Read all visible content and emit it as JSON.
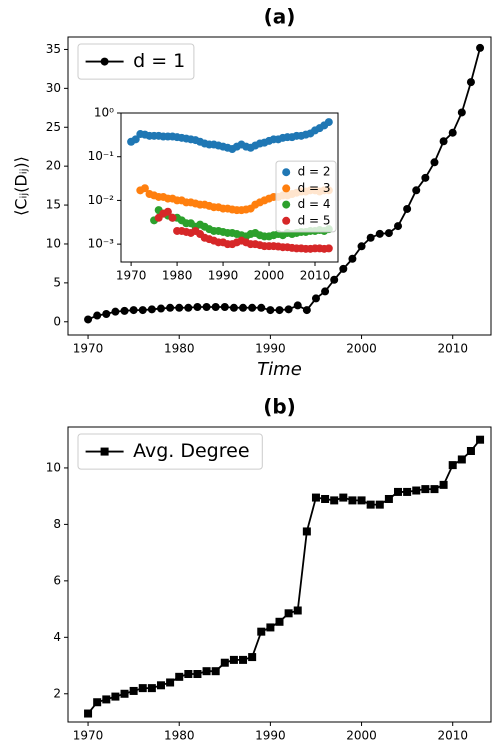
{
  "chart_data": [
    {
      "type": "line",
      "title": "(a)",
      "x_label": "Time",
      "y_label": "⟨Cᵢⱼ(Dᵢⱼ)⟩",
      "x": [
        1970,
        1971,
        1972,
        1973,
        1974,
        1975,
        1976,
        1977,
        1978,
        1979,
        1980,
        1981,
        1982,
        1983,
        1984,
        1985,
        1986,
        1987,
        1988,
        1989,
        1990,
        1991,
        1992,
        1993,
        1994,
        1995,
        1996,
        1997,
        1998,
        1999,
        2000,
        2001,
        2002,
        2003,
        2004,
        2005,
        2006,
        2007,
        2008,
        2009,
        2010,
        2011,
        2012,
        2013
      ],
      "series": [
        {
          "name": "d = 1",
          "color": "#000000",
          "marker": "circle",
          "values": [
            0.3,
            0.8,
            1.0,
            1.3,
            1.4,
            1.5,
            1.5,
            1.6,
            1.7,
            1.8,
            1.8,
            1.8,
            1.9,
            1.9,
            1.9,
            1.9,
            1.8,
            1.8,
            1.8,
            1.8,
            1.5,
            1.5,
            1.6,
            2.1,
            1.5,
            3.0,
            3.9,
            5.4,
            6.8,
            8.1,
            9.7,
            10.8,
            11.3,
            11.4,
            12.3,
            14.5,
            16.9,
            18.5,
            20.5,
            23.2,
            24.3,
            26.9,
            30.8,
            35.2
          ]
        }
      ],
      "xlim": [
        1967.8,
        2014.2
      ],
      "xticks": [
        1970,
        1980,
        1990,
        2000,
        2010
      ],
      "ylim": [
        -1.7,
        36.6
      ],
      "yticks": [
        0,
        5,
        10,
        15,
        20,
        25,
        30,
        35
      ],
      "legend": "upper left"
    },
    {
      "type": "scatter",
      "log_y": true,
      "series": [
        {
          "name": "d = 2",
          "color": "#1f77b4",
          "x": [
            1970,
            1971,
            1972,
            1973,
            1974,
            1975,
            1976,
            1977,
            1978,
            1979,
            1980,
            1981,
            1982,
            1983,
            1984,
            1985,
            1986,
            1987,
            1988,
            1989,
            1990,
            1991,
            1992,
            1993,
            1994,
            1995,
            1996,
            1997,
            1998,
            1999,
            2000,
            2001,
            2002,
            2003,
            2004,
            2005,
            2006,
            2007,
            2008,
            2009,
            2010,
            2011,
            2012,
            2013
          ],
          "values": [
            0.22,
            0.25,
            0.33,
            0.32,
            0.3,
            0.3,
            0.3,
            0.29,
            0.29,
            0.29,
            0.28,
            0.27,
            0.26,
            0.25,
            0.24,
            0.22,
            0.2,
            0.19,
            0.19,
            0.18,
            0.17,
            0.16,
            0.15,
            0.17,
            0.19,
            0.17,
            0.16,
            0.18,
            0.2,
            0.21,
            0.23,
            0.25,
            0.25,
            0.27,
            0.28,
            0.28,
            0.3,
            0.3,
            0.32,
            0.34,
            0.4,
            0.45,
            0.52,
            0.62
          ]
        },
        {
          "name": "d = 3",
          "color": "#ff7f0e",
          "x": [
            1972,
            1973,
            1974,
            1975,
            1976,
            1977,
            1978,
            1979,
            1980,
            1981,
            1982,
            1983,
            1984,
            1985,
            1986,
            1987,
            1988,
            1989,
            1990,
            1991,
            1992,
            1993,
            1994,
            1995,
            1996,
            1997,
            1998,
            1999,
            2000,
            2001,
            2002,
            2003,
            2004,
            2005,
            2006,
            2007,
            2008,
            2009,
            2010,
            2011,
            2012,
            2013
          ],
          "values": [
            0.017,
            0.019,
            0.014,
            0.013,
            0.012,
            0.012,
            0.011,
            0.011,
            0.01,
            0.01,
            0.009,
            0.009,
            0.0085,
            0.008,
            0.008,
            0.0075,
            0.007,
            0.007,
            0.0065,
            0.0065,
            0.0062,
            0.006,
            0.006,
            0.0062,
            0.0065,
            0.008,
            0.009,
            0.01,
            0.011,
            0.012,
            0.012,
            0.013,
            0.013,
            0.014,
            0.015,
            0.016,
            0.016,
            0.017,
            0.017,
            0.016,
            0.017,
            0.017
          ]
        },
        {
          "name": "d = 4",
          "color": "#2ca02c",
          "x": [
            1975,
            1976,
            1977,
            1978,
            1979,
            1980,
            1981,
            1982,
            1983,
            1984,
            1985,
            1986,
            1987,
            1988,
            1989,
            1990,
            1991,
            1992,
            1993,
            1994,
            1995,
            1996,
            1997,
            1998,
            1999,
            2000,
            2001,
            2002,
            2003,
            2004,
            2005,
            2006,
            2007,
            2008,
            2009,
            2010,
            2011,
            2012,
            2013
          ],
          "values": [
            0.0035,
            0.006,
            0.005,
            0.0045,
            0.004,
            0.004,
            0.0035,
            0.003,
            0.003,
            0.0025,
            0.0028,
            0.0025,
            0.0022,
            0.002,
            0.002,
            0.0019,
            0.0018,
            0.0018,
            0.0017,
            0.0016,
            0.0015,
            0.0017,
            0.0018,
            0.0016,
            0.0015,
            0.0015,
            0.0016,
            0.0017,
            0.0016,
            0.0018,
            0.0017,
            0.0018,
            0.0019,
            0.0019,
            0.002,
            0.002,
            0.0021,
            0.002,
            0.0022
          ]
        },
        {
          "name": "d = 5",
          "color": "#d62728",
          "x": [
            1976,
            1977,
            1978,
            1979,
            1980,
            1981,
            1982,
            1983,
            1984,
            1985,
            1986,
            1987,
            1988,
            1989,
            1990,
            1991,
            1992,
            1993,
            1994,
            1995,
            1996,
            1997,
            1998,
            1999,
            2000,
            2001,
            2002,
            2003,
            2004,
            2005,
            2006,
            2007,
            2008,
            2009,
            2010,
            2011,
            2012,
            2013
          ],
          "values": [
            0.004,
            0.005,
            0.0055,
            0.004,
            0.002,
            0.002,
            0.0019,
            0.0018,
            0.002,
            0.0017,
            0.0014,
            0.0013,
            0.0012,
            0.0011,
            0.0011,
            0.001,
            0.001,
            0.0011,
            0.0012,
            0.0011,
            0.001,
            0.001,
            0.00095,
            0.0009,
            0.0009,
            0.0009,
            0.00088,
            0.00085,
            0.00085,
            0.00082,
            0.0008,
            0.0008,
            0.00078,
            0.00078,
            0.0008,
            0.0008,
            0.00078,
            0.0008
          ]
        }
      ],
      "xlim": [
        1967.8,
        2015
      ],
      "xticks": [
        1970,
        1980,
        1990,
        2000,
        2010
      ],
      "ylim": [
        0.00039,
        1
      ],
      "yticks": [
        {
          "value": 0.001,
          "label": "10⁻³"
        },
        {
          "value": 0.01,
          "label": "10⁻²"
        },
        {
          "value": 0.1,
          "label": "10⁻¹"
        },
        {
          "value": 1,
          "label": "10⁰"
        }
      ],
      "legend": "center right"
    },
    {
      "type": "line",
      "title": "(b)",
      "x": [
        1970,
        1971,
        1972,
        1973,
        1974,
        1975,
        1976,
        1977,
        1978,
        1979,
        1980,
        1981,
        1982,
        1983,
        1984,
        1985,
        1986,
        1987,
        1988,
        1989,
        1990,
        1991,
        1992,
        1993,
        1994,
        1995,
        1996,
        1997,
        1998,
        1999,
        2000,
        2001,
        2002,
        2003,
        2004,
        2005,
        2006,
        2007,
        2008,
        2009,
        2010,
        2011,
        2012,
        2013
      ],
      "series": [
        {
          "name": "Avg. Degree",
          "color": "#000000",
          "marker": "square",
          "values": [
            1.3,
            1.7,
            1.8,
            1.9,
            2.0,
            2.1,
            2.2,
            2.2,
            2.3,
            2.4,
            2.6,
            2.7,
            2.7,
            2.8,
            2.8,
            3.1,
            3.2,
            3.2,
            3.3,
            4.2,
            4.35,
            4.55,
            4.85,
            4.95,
            7.75,
            8.95,
            8.9,
            8.85,
            8.95,
            8.85,
            8.85,
            8.7,
            8.7,
            8.9,
            9.15,
            9.15,
            9.2,
            9.25,
            9.25,
            9.4,
            10.1,
            10.3,
            10.6,
            11.0
          ]
        }
      ],
      "xlim": [
        1967.8,
        2014.2
      ],
      "xticks": [
        1970,
        1980,
        1990,
        2000,
        2010
      ],
      "ylim": [
        1.0,
        11.45
      ],
      "yticks": [
        2,
        4,
        6,
        8,
        10
      ],
      "legend": "upper left"
    }
  ]
}
